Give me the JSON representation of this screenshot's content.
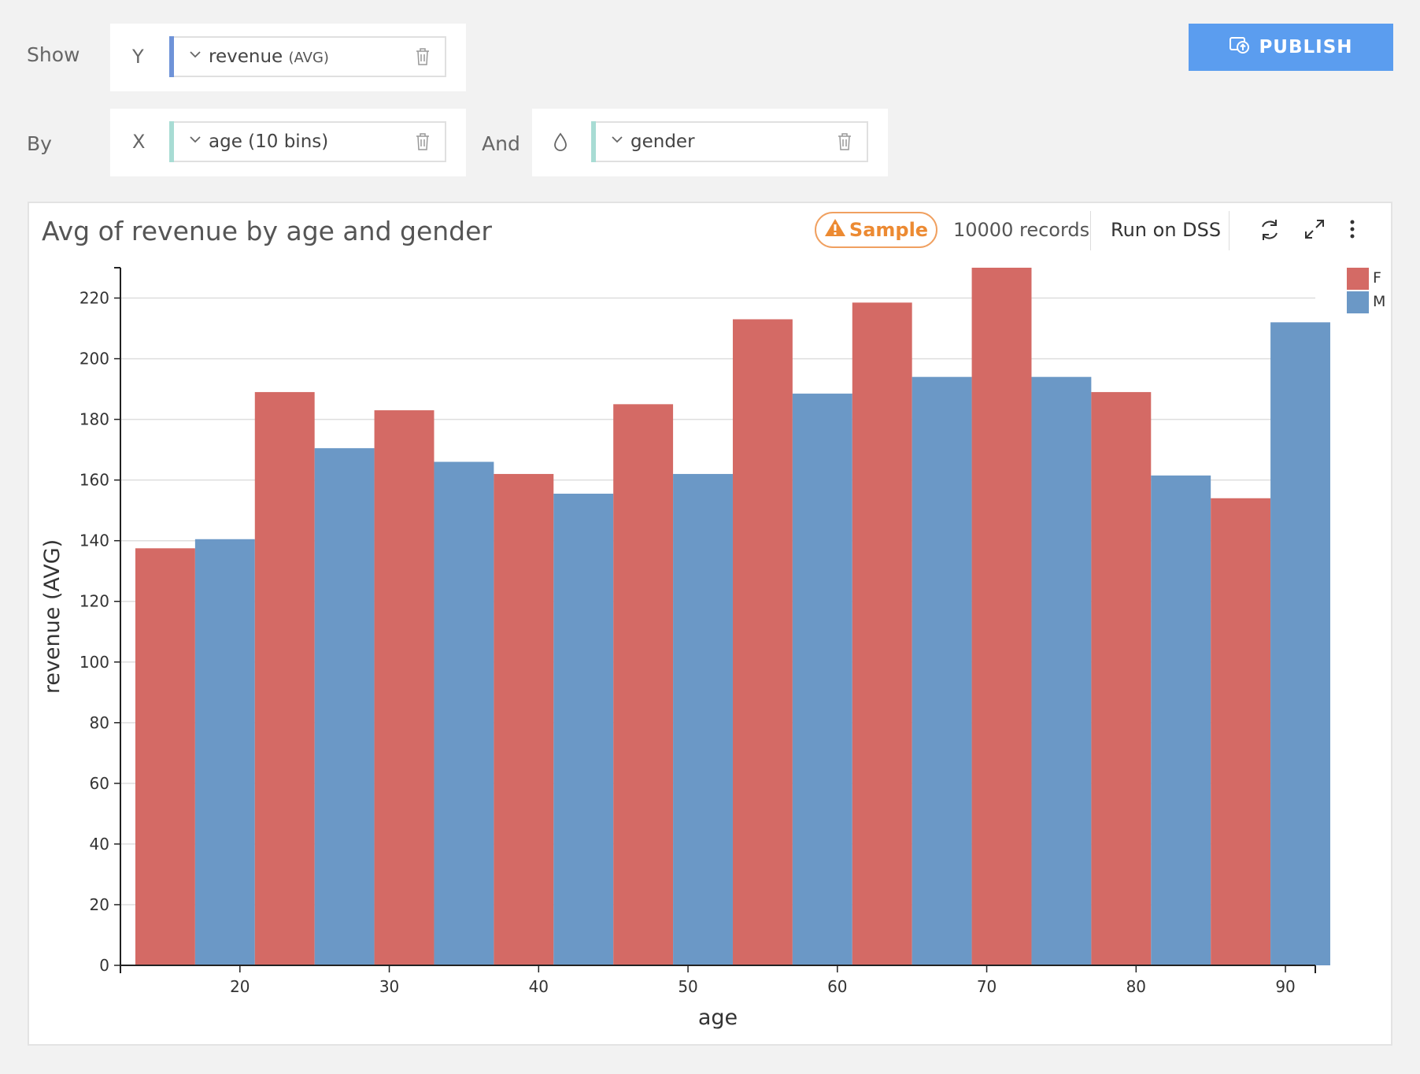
{
  "shelf": {
    "show_label": "Show",
    "by_label": "By",
    "and_label": "And",
    "y_letter": "Y",
    "x_letter": "X",
    "y_field": {
      "name": "revenue",
      "agg": "(AVG)",
      "bar_color": "#6f93d8"
    },
    "x_field": {
      "name": "age (10 bins)",
      "bar_color": "#a8dcd4"
    },
    "color_field": {
      "name": "gender",
      "bar_color": "#a8dcd4"
    }
  },
  "toolbar": {
    "publish_label": "PUBLISH"
  },
  "chart_header": {
    "title": "Avg of revenue by age and gender",
    "sample_label": "Sample",
    "records_text": "10000 records",
    "run_on_dss_label": "Run on DSS"
  },
  "chart_data": {
    "type": "bar",
    "xlabel": "age",
    "ylabel": "revenue (AVG)",
    "ylim": [
      0,
      230
    ],
    "yticks": [
      0,
      20,
      40,
      60,
      80,
      100,
      120,
      140,
      160,
      180,
      200,
      220
    ],
    "x_ticks": [
      20,
      30,
      40,
      50,
      60,
      70,
      80,
      90
    ],
    "x_range": [
      12,
      92
    ],
    "bin_width": 8,
    "bin_starts": [
      13,
      21,
      29,
      37,
      45,
      53,
      61,
      69,
      77,
      85
    ],
    "legend_position": "top-right",
    "grid": true,
    "series": [
      {
        "name": "F",
        "color": "#d46a65",
        "values": [
          137.5,
          189,
          183,
          162,
          185,
          213,
          218.5,
          230,
          189,
          154
        ]
      },
      {
        "name": "M",
        "color": "#6b98c6",
        "values": [
          140.5,
          170.5,
          166,
          155.5,
          162,
          188.5,
          194,
          194,
          161.5,
          212
        ]
      }
    ]
  }
}
